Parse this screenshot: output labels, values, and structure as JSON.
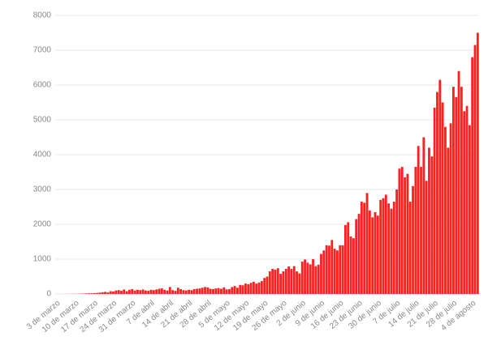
{
  "chart_data": {
    "type": "bar",
    "color": "#ff2020",
    "grid": true,
    "ylim": [
      0,
      8000
    ],
    "yticks": [
      0,
      1000,
      2000,
      3000,
      4000,
      5000,
      6000,
      7000,
      8000
    ],
    "categories": [
      "3 de marzo",
      null,
      null,
      null,
      null,
      null,
      null,
      "10 de marzo",
      null,
      null,
      null,
      null,
      null,
      null,
      "17 de marzo",
      null,
      null,
      null,
      null,
      null,
      null,
      "24 de marzo",
      null,
      null,
      null,
      null,
      null,
      null,
      "31 de marzo",
      null,
      null,
      null,
      null,
      null,
      null,
      "7 de abril",
      null,
      null,
      null,
      null,
      null,
      null,
      "14 de abril",
      null,
      null,
      null,
      null,
      null,
      null,
      "21 de abril",
      null,
      null,
      null,
      null,
      null,
      null,
      "28 de abril",
      null,
      null,
      null,
      null,
      null,
      null,
      "5 de mayo",
      null,
      null,
      null,
      null,
      null,
      null,
      "12 de mayo",
      null,
      null,
      null,
      null,
      null,
      null,
      "19 de mayo",
      null,
      null,
      null,
      null,
      null,
      null,
      "26 de mayo",
      null,
      null,
      null,
      null,
      null,
      null,
      "2 de junio",
      null,
      null,
      null,
      null,
      null,
      null,
      "9 de junio",
      null,
      null,
      null,
      null,
      null,
      null,
      "16 de junio",
      null,
      null,
      null,
      null,
      null,
      null,
      "23 de junio",
      null,
      null,
      null,
      null,
      null,
      null,
      "30 de junio",
      null,
      null,
      null,
      null,
      null,
      null,
      "7 de julio",
      null,
      null,
      null,
      null,
      null,
      null,
      "14 de julio",
      null,
      null,
      null,
      null,
      null,
      null,
      "21 de julio",
      null,
      null,
      null,
      null,
      null,
      null,
      "28 de julio",
      null,
      null,
      null,
      null,
      null,
      null,
      "4 de agosto",
      null,
      null
    ],
    "values": [
      0,
      0,
      1,
      1,
      2,
      2,
      3,
      5,
      5,
      8,
      10,
      15,
      20,
      20,
      25,
      30,
      40,
      50,
      60,
      45,
      80,
      70,
      100,
      110,
      90,
      130,
      80,
      120,
      140,
      100,
      120,
      110,
      130,
      100,
      90,
      120,
      110,
      130,
      150,
      160,
      120,
      100,
      200,
      110,
      90,
      180,
      140,
      110,
      100,
      120,
      110,
      140,
      150,
      160,
      180,
      200,
      190,
      150,
      140,
      160,
      170,
      150,
      190,
      130,
      140,
      200,
      230,
      180,
      260,
      250,
      300,
      280,
      320,
      350,
      300,
      330,
      370,
      460,
      500,
      650,
      720,
      700,
      740,
      580,
      650,
      720,
      790,
      720,
      800,
      650,
      590,
      930,
      990,
      900,
      850,
      1000,
      800,
      840,
      1150,
      1250,
      1400,
      1390,
      1550,
      1300,
      1250,
      1400,
      1400,
      1980,
      2060,
      1650,
      1600,
      2150,
      2300,
      2650,
      2620,
      2900,
      2400,
      2200,
      2350,
      2250,
      2700,
      2750,
      2850,
      2600,
      2450,
      2650,
      3000,
      3600,
      3650,
      3350,
      3450,
      2650,
      3100,
      3650,
      4250,
      3650,
      4500,
      3250,
      4200,
      3950,
      5350,
      5800,
      6150,
      5500,
      4800,
      4200,
      4900,
      5950,
      5650,
      6400,
      5950,
      5250,
      5400,
      4850,
      6800,
      7150,
      7500
    ]
  }
}
